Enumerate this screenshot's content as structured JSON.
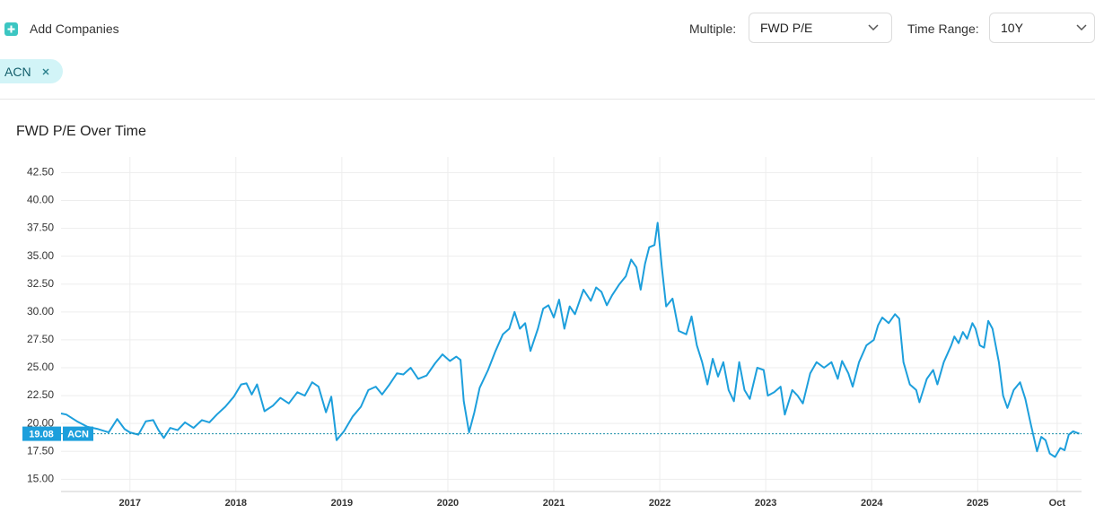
{
  "header": {
    "add_button": "Add Companies",
    "multiple_label": "Multiple:",
    "multiple_value": "FWD P/E",
    "range_label": "Time Range:",
    "range_value": "10Y",
    "chips": [
      "ACN"
    ]
  },
  "chart_data": {
    "type": "line",
    "title": "FWD P/E Over Time",
    "x": [
      2016.35,
      2016.4,
      2016.5,
      2016.6,
      2016.7,
      2016.8,
      2016.88,
      2016.95,
      2017.0,
      2017.08,
      2017.15,
      2017.22,
      2017.27,
      2017.32,
      2017.38,
      2017.45,
      2017.52,
      2017.6,
      2017.68,
      2017.75,
      2017.82,
      2017.9,
      2017.98,
      2018.05,
      2018.1,
      2018.15,
      2018.2,
      2018.27,
      2018.35,
      2018.42,
      2018.5,
      2018.58,
      2018.65,
      2018.72,
      2018.78,
      2018.85,
      2018.9,
      2018.95,
      2019.02,
      2019.1,
      2019.18,
      2019.25,
      2019.32,
      2019.38,
      2019.45,
      2019.52,
      2019.58,
      2019.65,
      2019.72,
      2019.8,
      2019.88,
      2019.95,
      2020.02,
      2020.08,
      2020.12,
      2020.15,
      2020.2,
      2020.25,
      2020.3,
      2020.38,
      2020.45,
      2020.52,
      2020.58,
      2020.63,
      2020.68,
      2020.73,
      2020.78,
      2020.85,
      2020.9,
      2020.95,
      2021.0,
      2021.05,
      2021.1,
      2021.15,
      2021.2,
      2021.28,
      2021.35,
      2021.4,
      2021.45,
      2021.5,
      2021.55,
      2021.62,
      2021.68,
      2021.73,
      2021.78,
      2021.82,
      2021.86,
      2021.9,
      2021.95,
      2021.98,
      2022.02,
      2022.06,
      2022.12,
      2022.18,
      2022.25,
      2022.3,
      2022.35,
      2022.4,
      2022.45,
      2022.5,
      2022.55,
      2022.6,
      2022.65,
      2022.7,
      2022.75,
      2022.8,
      2022.85,
      2022.92,
      2022.98,
      2023.02,
      2023.08,
      2023.14,
      2023.18,
      2023.25,
      2023.3,
      2023.35,
      2023.42,
      2023.48,
      2023.55,
      2023.62,
      2023.68,
      2023.72,
      2023.78,
      2023.82,
      2023.88,
      2023.95,
      2024.02,
      2024.06,
      2024.1,
      2024.16,
      2024.22,
      2024.26,
      2024.3,
      2024.36,
      2024.42,
      2024.45,
      2024.52,
      2024.58,
      2024.62,
      2024.68,
      2024.75,
      2024.78,
      2024.82,
      2024.86,
      2024.9,
      2024.95,
      2024.98,
      2025.02,
      2025.06,
      2025.1,
      2025.14,
      2025.2,
      2025.24,
      2025.28,
      2025.34,
      2025.4,
      2025.45,
      2025.5,
      2025.56,
      2025.6,
      2025.64,
      2025.68,
      2025.73,
      2025.78,
      2025.82,
      2025.86,
      2025.9,
      2025.96
    ],
    "series": [
      {
        "name": "ACN",
        "color": "#1d9fdc",
        "values": [
          20.9,
          20.8,
          20.2,
          19.7,
          19.5,
          19.2,
          20.4,
          19.5,
          19.2,
          19.0,
          20.2,
          20.3,
          19.4,
          18.7,
          19.6,
          19.4,
          20.1,
          19.6,
          20.3,
          20.1,
          20.8,
          21.5,
          22.4,
          23.5,
          23.6,
          22.6,
          23.5,
          21.1,
          21.6,
          22.3,
          21.8,
          22.8,
          22.5,
          23.7,
          23.3,
          21.0,
          22.4,
          18.5,
          19.3,
          20.6,
          21.5,
          23.0,
          23.3,
          22.6,
          23.5,
          24.5,
          24.4,
          25.0,
          24.0,
          24.3,
          25.4,
          26.2,
          25.6,
          26.0,
          25.7,
          22.0,
          19.2,
          21.0,
          23.2,
          24.8,
          26.5,
          28.0,
          28.5,
          30.0,
          28.5,
          29.0,
          26.5,
          28.5,
          30.3,
          30.6,
          29.5,
          31.1,
          28.5,
          30.5,
          29.8,
          32.0,
          31.0,
          32.2,
          31.8,
          30.6,
          31.5,
          32.5,
          33.2,
          34.7,
          34.0,
          32.0,
          34.3,
          35.8,
          36.0,
          38.0,
          34.0,
          30.5,
          31.2,
          28.3,
          28.0,
          29.6,
          27.0,
          25.5,
          23.5,
          25.8,
          24.2,
          25.5,
          23.0,
          22.0,
          25.5,
          23.0,
          22.2,
          25.0,
          24.8,
          22.5,
          22.8,
          23.3,
          20.8,
          23.0,
          22.5,
          21.8,
          24.5,
          25.5,
          25.0,
          25.5,
          24.0,
          25.6,
          24.5,
          23.3,
          25.5,
          27.0,
          27.5,
          28.8,
          29.5,
          29.0,
          29.8,
          29.4,
          25.5,
          23.5,
          23.0,
          21.9,
          24.0,
          24.8,
          23.5,
          25.5,
          27.0,
          27.8,
          27.2,
          28.2,
          27.6,
          29.0,
          28.5,
          27.0,
          26.8,
          29.2,
          28.5,
          25.5,
          22.5,
          21.4,
          23.0,
          23.7,
          22.2,
          20.0,
          17.5,
          18.8,
          18.5,
          17.3,
          17.0,
          17.8,
          17.6,
          19.0,
          19.3,
          19.08
        ]
      }
    ],
    "current_value": 19.08,
    "xlim": [
      2016.35,
      2025.98
    ],
    "xticks": [
      2017,
      2018,
      2019,
      2020,
      2021,
      2022,
      2023,
      2024,
      2025,
      {
        "value": 2025.75,
        "label": "Oct"
      }
    ],
    "ylim": [
      13.9,
      43.9
    ],
    "yticks": [
      {
        "value": 15,
        "label": "15.00"
      },
      {
        "value": 17.5,
        "label": "17.50"
      },
      {
        "value": 20,
        "label": "20.00"
      },
      {
        "value": 22.5,
        "label": "22.50"
      },
      {
        "value": 25,
        "label": "25.00"
      },
      {
        "value": 27.5,
        "label": "27.50"
      },
      {
        "value": 30,
        "label": "30.00"
      },
      {
        "value": 32.5,
        "label": "32.50"
      },
      {
        "value": 35,
        "label": "35.00"
      },
      {
        "value": 37.5,
        "label": "37.50"
      },
      {
        "value": 40,
        "label": "40.00"
      },
      {
        "value": 42.5,
        "label": "42.50"
      }
    ],
    "grid": true
  }
}
